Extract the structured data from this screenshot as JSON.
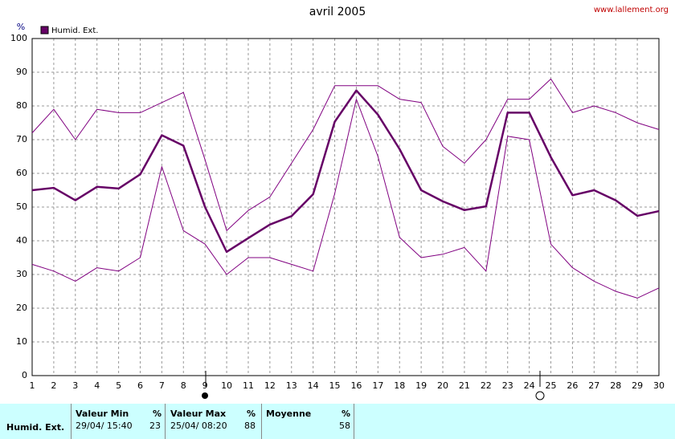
{
  "chart_data": {
    "type": "line",
    "title": "avril 2005",
    "source": "www.lallement.org",
    "y_label": "%",
    "x": [
      1,
      2,
      3,
      4,
      5,
      6,
      7,
      8,
      9,
      10,
      11,
      12,
      13,
      14,
      15,
      16,
      17,
      18,
      19,
      20,
      21,
      22,
      23,
      24,
      25,
      26,
      27,
      28,
      29,
      30
    ],
    "xlim": [
      1,
      30
    ],
    "ylim": [
      0,
      100
    ],
    "yticks": [
      0,
      10,
      20,
      30,
      40,
      50,
      60,
      70,
      80,
      90,
      100
    ],
    "grid": true,
    "series": [
      {
        "name": "Humid. Ext.",
        "color": "#660066",
        "width": 2.5,
        "values": [
          55,
          55.7,
          52,
          56,
          55.5,
          59.7,
          71.3,
          68.2,
          50,
          36.7,
          40.8,
          44.8,
          47.3,
          53.8,
          75.3,
          84.6,
          77.4,
          67.2,
          55,
          51.7,
          49.1,
          50.2,
          78,
          78,
          64.8,
          53.5,
          55,
          52,
          47.4,
          48.8
        ]
      },
      {
        "color": "#800080",
        "width": 1,
        "values": [
          72,
          79,
          70,
          79,
          78,
          78,
          81,
          84,
          64,
          43,
          49,
          53,
          63,
          73,
          86,
          86,
          86,
          82,
          81,
          68,
          63,
          70,
          82,
          82,
          88,
          78,
          80,
          78,
          75,
          73
        ]
      },
      {
        "color": "#800080",
        "width": 1,
        "values": [
          33,
          31,
          28,
          32,
          31,
          35,
          62,
          43,
          39,
          30,
          35,
          35,
          33,
          31,
          54,
          82,
          65,
          41,
          35,
          36,
          38,
          31,
          71,
          70,
          39,
          32,
          28,
          25,
          23,
          26
        ]
      }
    ]
  },
  "table": {
    "headers": [
      [
        "Valeur Min",
        "%"
      ],
      [
        "Valeur Max",
        "%"
      ],
      [
        "Moyenne",
        "%"
      ]
    ],
    "rows": [
      [
        "Humid. Ext.",
        "29/04/ 15:40",
        "23",
        "25/04/ 08:20",
        "88",
        "58"
      ]
    ]
  }
}
